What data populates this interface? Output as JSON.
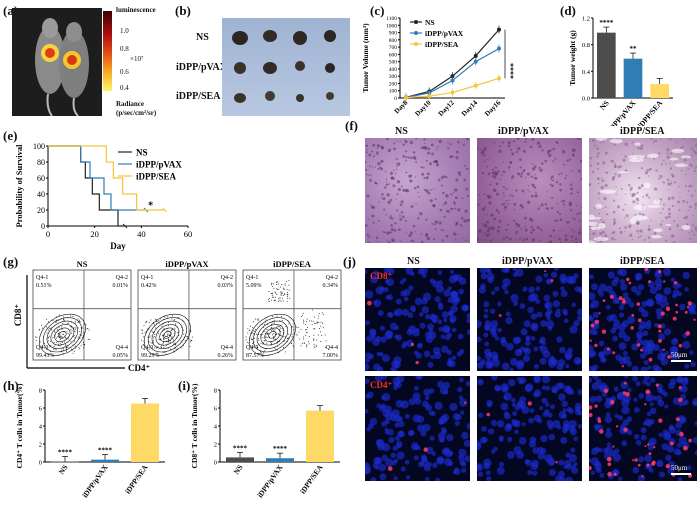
{
  "panel_labels": {
    "a": "(a)",
    "b": "(b)",
    "c": "(c)",
    "d": "(d)",
    "e": "(e)",
    "f": "(f)",
    "g": "(g)",
    "h": "(h)",
    "i": "(i)",
    "j": "(j)"
  },
  "colors": {
    "ns": "#222222",
    "pvax": "#2e7db5",
    "sea": "#f2c53d",
    "blue_bar": "#2e7db5",
    "gray_bar": "#4d4d4d",
    "yellow_bar": "#ffd966"
  },
  "panel_a": {
    "colorbar_title": "luminescence",
    "ticks": [
      "1.0",
      "0.8",
      "0.6",
      "0.4"
    ],
    "exponent": "×10⁷",
    "unit_line1": "Radiance",
    "unit_line2": "(p/sec/cm²/sr)"
  },
  "panel_b": {
    "rows": [
      "NS",
      "iDPP/pVAX",
      "iDPP/SEA"
    ]
  },
  "chart_data": [
    {
      "id": "c",
      "type": "line",
      "title": "",
      "xlabel": "",
      "ylabel": "Tumor Volume (mm³)",
      "categories": [
        "Day8",
        "Day10",
        "Day12",
        "Day14",
        "Day16"
      ],
      "yticks": [
        "0",
        "100",
        "200",
        "300",
        "400",
        "500",
        "600",
        "700",
        "800",
        "900",
        "1000",
        "1100"
      ],
      "ylim": [
        0,
        1100
      ],
      "series": [
        {
          "name": "NS",
          "values": [
            10,
            90,
            300,
            580,
            940
          ]
        },
        {
          "name": "iDPP/pVAX",
          "values": [
            8,
            70,
            240,
            500,
            680
          ]
        },
        {
          "name": "iDPP/SEA",
          "values": [
            5,
            25,
            75,
            170,
            270
          ]
        }
      ],
      "annotation": "****"
    },
    {
      "id": "d",
      "type": "bar",
      "title": "",
      "xlabel": "",
      "ylabel": "Tumor weight (g)",
      "categories": [
        "NS",
        "iDPP/pVAX",
        "iDPP/SEA"
      ],
      "values": [
        0.98,
        0.59,
        0.21
      ],
      "yticks": [
        "0.0",
        "0.4",
        "0.8",
        "1.2"
      ],
      "ylim": [
        0,
        1.2
      ],
      "significance": [
        "****",
        "**",
        ""
      ]
    },
    {
      "id": "e",
      "type": "line",
      "title": "",
      "xlabel": "Day",
      "ylabel": "Probability of Survival",
      "xticks": [
        "0",
        "20",
        "40",
        "60"
      ],
      "xlim": [
        0,
        60
      ],
      "yticks": [
        "0",
        "20",
        "40",
        "60",
        "80",
        "100"
      ],
      "ylim": [
        0,
        100
      ],
      "series": [
        {
          "name": "NS",
          "points": [
            [
              0,
              100
            ],
            [
              14,
              100
            ],
            [
              14,
              80
            ],
            [
              16,
              80
            ],
            [
              16,
              60
            ],
            [
              19,
              60
            ],
            [
              19,
              40
            ],
            [
              22,
              40
            ],
            [
              22,
              20
            ],
            [
              30,
              20
            ],
            [
              30,
              0
            ],
            [
              33,
              0
            ]
          ]
        },
        {
          "name": "iDPP/pVAX",
          "points": [
            [
              0,
              100
            ],
            [
              14,
              100
            ],
            [
              14,
              80
            ],
            [
              18,
              80
            ],
            [
              18,
              60
            ],
            [
              24,
              60
            ],
            [
              24,
              40
            ],
            [
              27,
              40
            ],
            [
              27,
              20
            ],
            [
              42,
              20
            ]
          ]
        },
        {
          "name": "iDPP/SEA",
          "points": [
            [
              0,
              100
            ],
            [
              25,
              100
            ],
            [
              25,
              80
            ],
            [
              28,
              80
            ],
            [
              28,
              60
            ],
            [
              32,
              60
            ],
            [
              32,
              40
            ],
            [
              38,
              40
            ],
            [
              38,
              20
            ],
            [
              50,
              20
            ]
          ]
        }
      ],
      "annotation": "*"
    },
    {
      "id": "h",
      "type": "bar",
      "title": "",
      "xlabel": "",
      "ylabel": "CD4⁺ T cells in Tumor(%)",
      "categories": [
        "NS",
        "iDPP/pVAX",
        "iDPP/SEA"
      ],
      "values": [
        0.05,
        0.26,
        6.5
      ],
      "yticks": [
        "0",
        "2",
        "4",
        "6",
        "8"
      ],
      "ylim": [
        0,
        8
      ],
      "significance": [
        "****",
        "****",
        ""
      ]
    },
    {
      "id": "i",
      "type": "bar",
      "title": "",
      "xlabel": "",
      "ylabel": "CD8⁺ T cells in Tumor(%)",
      "categories": [
        "NS",
        "iDPP/pVAX",
        "iDPP/SEA"
      ],
      "values": [
        0.51,
        0.42,
        5.7
      ],
      "yticks": [
        "0",
        "2",
        "4",
        "6",
        "8"
      ],
      "ylim": [
        0,
        8
      ],
      "significance": [
        "****",
        "****",
        ""
      ]
    }
  ],
  "panel_f": {
    "titles": [
      "NS",
      "iDPP/pVAX",
      "iDPP/SEA"
    ]
  },
  "panel_g": {
    "titles": [
      "NS",
      "iDPP/pVAX",
      "iDPP/SEA"
    ],
    "y_axis": "CD8⁺",
    "x_axis": "CD4⁺",
    "quadrants": [
      {
        "q1": "Q4-1",
        "v1": "0.51%",
        "q2": "Q4-2",
        "v2": "0.01%",
        "q3": "Q4-3",
        "v3": "99.43%",
        "q4": "Q4-4",
        "v4": "0.05%"
      },
      {
        "q1": "Q4-1",
        "v1": "0.42%",
        "q2": "Q4-2",
        "v2": "0.03%",
        "q3": "Q4-3",
        "v3": "99.29%",
        "q4": "Q4-4",
        "v4": "0.26%"
      },
      {
        "q1": "Q4-1",
        "v1": "5.09%",
        "q2": "Q4-2",
        "v2": "0.34%",
        "q3": "Q4-3",
        "v3": "87.57%",
        "q4": "Q4-4",
        "v4": "7.00%"
      }
    ]
  },
  "panel_j": {
    "titles": [
      "NS",
      "iDPP/pVAX",
      "iDPP/SEA"
    ],
    "row1_label": "CD8⁺",
    "row2_label": "CD4⁺",
    "scale_bar": "50μm"
  }
}
